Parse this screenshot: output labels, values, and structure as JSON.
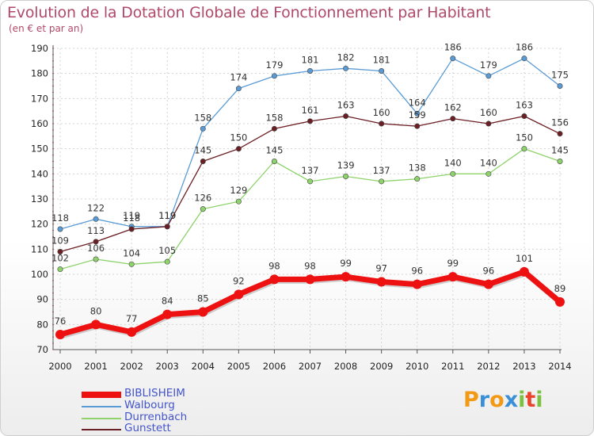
{
  "title": "Evolution de la Dotation Globale de Fonctionnement par Habitant",
  "subtitle": "(en € et par an)",
  "logo": {
    "text": "Proxiti",
    "letters": [
      "P",
      "r",
      "o",
      "x",
      "i",
      "t",
      "i"
    ],
    "colors": [
      "#f29a16",
      "#3a8fd6",
      "#f29a16",
      "#3a8fd6",
      "#7cc242",
      "#e8452c",
      "#7cc242"
    ]
  },
  "chart_data": {
    "type": "line",
    "title": "Evolution de la Dotation Globale de Fonctionnement par Habitant",
    "subtitle": "(en € et par an)",
    "xlabel": "",
    "ylabel": "",
    "x": [
      "2000",
      "2001",
      "2002",
      "2003",
      "2004",
      "2005",
      "2006",
      "2007",
      "2008",
      "2009",
      "2010",
      "2011",
      "2012",
      "2013",
      "2014"
    ],
    "ylim": [
      70,
      190
    ],
    "yticks": [
      70,
      80,
      90,
      100,
      110,
      120,
      130,
      140,
      150,
      160,
      170,
      180,
      190
    ],
    "grid": true,
    "legend_position": "bottom-left",
    "series": [
      {
        "name": "Walbourg",
        "color": "#5a9bd5",
        "values": [
          118,
          122,
          119,
          119,
          158,
          174,
          179,
          181,
          182,
          181,
          164,
          186,
          179,
          186,
          175
        ]
      },
      {
        "name": "Gunstett",
        "color": "#6b1f24",
        "values": [
          109,
          113,
          118,
          119,
          145,
          150,
          158,
          161,
          163,
          160,
          159,
          162,
          160,
          163,
          156
        ]
      },
      {
        "name": "Durrenbach",
        "color": "#8ed36b",
        "values": [
          102,
          106,
          104,
          105,
          126,
          129,
          145,
          137,
          139,
          137,
          138,
          140,
          140,
          150,
          145
        ]
      },
      {
        "name": "BIBLISHEIM",
        "color": "#ee1111",
        "values": [
          76,
          80,
          77,
          84,
          85,
          92,
          98,
          98,
          99,
          97,
          96,
          99,
          96,
          101,
          89
        ]
      }
    ],
    "legend": [
      "BIBLISHEIM",
      "Walbourg",
      "Durrenbach",
      "Gunstett"
    ]
  }
}
